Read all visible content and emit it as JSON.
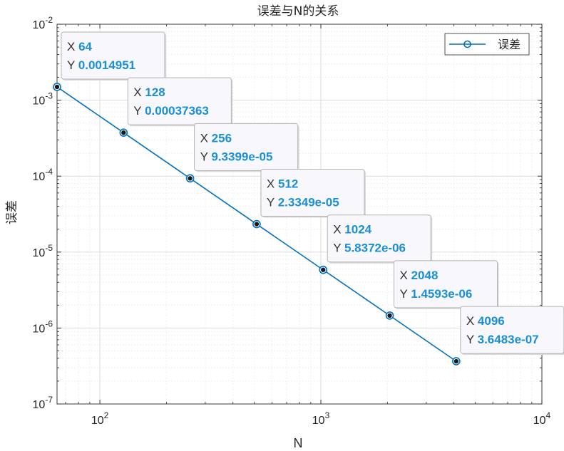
{
  "chart_data": {
    "type": "line",
    "title": "误差与N的关系",
    "xlabel": "N",
    "ylabel": "误差",
    "xscale": "log",
    "yscale": "log",
    "xlim": [
      64,
      10000
    ],
    "ylim": [
      1e-07,
      0.01
    ],
    "grid": true,
    "minor_grid": true,
    "legend_position": "top-right",
    "series": [
      {
        "name": "误差",
        "color": "#0072bd",
        "marker": "circle",
        "x": [
          64,
          128,
          256,
          512,
          1024,
          2048,
          4096
        ],
        "y": [
          0.0014951,
          0.00037363,
          9.3399e-05,
          2.3349e-05,
          5.8372e-06,
          1.4593e-06,
          3.6483e-07
        ]
      }
    ],
    "x_ticks": [
      {
        "value": 100,
        "base": "10",
        "exp": "2"
      },
      {
        "value": 1000,
        "base": "10",
        "exp": "3"
      },
      {
        "value": 10000,
        "base": "10",
        "exp": "4"
      }
    ],
    "y_ticks": [
      {
        "value": 0.01,
        "base": "10",
        "exp": "-2"
      },
      {
        "value": 0.001,
        "base": "10",
        "exp": "-3"
      },
      {
        "value": 0.0001,
        "base": "10",
        "exp": "-4"
      },
      {
        "value": 1e-05,
        "base": "10",
        "exp": "-5"
      },
      {
        "value": 1e-06,
        "base": "10",
        "exp": "-6"
      },
      {
        "value": 1e-07,
        "base": "10",
        "exp": "-7"
      }
    ],
    "datatips": [
      {
        "x": "64",
        "y": "0.0014951"
      },
      {
        "x": "128",
        "y": "0.00037363"
      },
      {
        "x": "256",
        "y": "9.3399e-05"
      },
      {
        "x": "512",
        "y": "2.3349e-05"
      },
      {
        "x": "1024",
        "y": "5.8372e-06"
      },
      {
        "x": "2048",
        "y": "1.4593e-06"
      },
      {
        "x": "4096",
        "y": "3.6483e-07"
      }
    ],
    "datatip_labels": {
      "x": "X",
      "y": "Y"
    }
  }
}
